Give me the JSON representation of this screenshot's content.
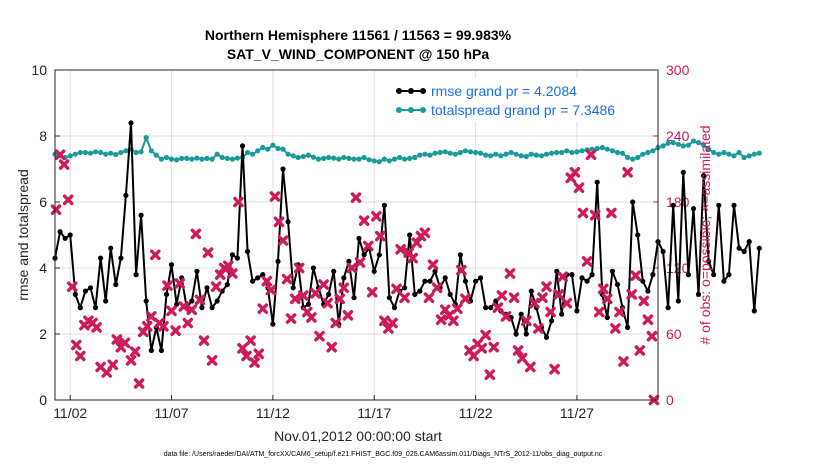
{
  "chart_data": {
    "type": "line",
    "title": "Northern Hemisphere 11561 / 11563 = 99.983%",
    "subtitle": "SAT_V_WIND_COMPONENT @ 150 hPa",
    "xlabel": "Nov.01,2012 00:00:00 start",
    "ylabel": "rmse and totalspread",
    "y2label": "# of obs: o=possible; ×=assimilated",
    "x_ticks": [
      "11/02",
      "11/07",
      "11/12",
      "11/17",
      "11/22",
      "11/27"
    ],
    "x_tick_days": [
      2,
      7,
      12,
      17,
      22,
      27
    ],
    "xlim": [
      1.25,
      31.0
    ],
    "ylim": [
      0,
      10
    ],
    "y_ticks": [
      "0",
      "2",
      "4",
      "6",
      "8",
      "10"
    ],
    "y2lim": [
      0,
      300
    ],
    "y2_ticks": [
      "0",
      "60",
      "120",
      "180",
      "240",
      "300"
    ],
    "grid": true,
    "legend_location": "top-right",
    "footer": "data file: /Users/raeder/DAI/ATM_forcXX/CAM6_setup/f.e21.FHIST_BGC.f09_025.CAM6assim.011/Diags_NTrS_2012-11/obs_diag_output.nc",
    "series": [
      {
        "name": "rmse grand pr = 4.2084",
        "color": "#000000",
        "marker": "dot",
        "axis": "left",
        "x_start": 1.25,
        "x_step": 0.25,
        "values": [
          4.3,
          5.1,
          4.9,
          5.0,
          3.2,
          2.8,
          3.3,
          3.4,
          2.8,
          4.3,
          3.0,
          4.6,
          3.5,
          4.3,
          6.2,
          8.4,
          3.8,
          5.6,
          3.0,
          1.5,
          2.2,
          1.5,
          3.2,
          4.1,
          2.9,
          3.7,
          2.8,
          3.0,
          3.9,
          2.8,
          3.4,
          2.8,
          3.0,
          3.3,
          3.5,
          4.4,
          4.3,
          7.7,
          4.5,
          3.6,
          3.7,
          3.8,
          3.4,
          2.3,
          4.2,
          7.0,
          5.4,
          3.4,
          4.1,
          2.8,
          2.9,
          4.0,
          3.4,
          2.9,
          3.2,
          3.9,
          2.3,
          3.7,
          4.2,
          3.1,
          4.9,
          4.4,
          4.6,
          3.9,
          4.4,
          5.9,
          3.1,
          2.8,
          3.3,
          3.4,
          5.0,
          3.2,
          3.3,
          3.6,
          3.6,
          3.9,
          3.4,
          3.7,
          3.2,
          2.9,
          4.4,
          3.6,
          3.0,
          3.6,
          3.7,
          2.8,
          2.8,
          3.0,
          2.7,
          2.6,
          2.5,
          2.0,
          2.6,
          2.0,
          3.3,
          2.8,
          2.2,
          1.9,
          2.4,
          3.9,
          2.6,
          3.8,
          3.8,
          2.7,
          3.7,
          3.6,
          3.8,
          6.6,
          3.2,
          2.5,
          3.9,
          3.5,
          2.8,
          2.2,
          6.0,
          5.0,
          3.6,
          3.3,
          3.8,
          4.8,
          4.5,
          2.8,
          5.9,
          3.0,
          6.9,
          3.8,
          5.8,
          3.2,
          6.8,
          4.2,
          3.8,
          5.9,
          3.6,
          3.8,
          5.9,
          4.6,
          4.5,
          4.8,
          2.7,
          4.6
        ]
      },
      {
        "name": "totalspread grand pr = 7.3486",
        "color": "#1a9b9b",
        "marker": "dot",
        "axis": "left",
        "x_start": 1.25,
        "x_step": 0.25,
        "values": [
          7.45,
          7.4,
          7.35,
          7.4,
          7.45,
          7.5,
          7.5,
          7.48,
          7.52,
          7.5,
          7.45,
          7.48,
          7.44,
          7.5,
          7.55,
          7.6,
          7.5,
          7.52,
          7.95,
          7.55,
          7.42,
          7.3,
          7.35,
          7.3,
          7.28,
          7.32,
          7.32,
          7.3,
          7.33,
          7.3,
          7.32,
          7.3,
          7.45,
          7.35,
          7.32,
          7.3,
          7.33,
          7.35,
          7.5,
          7.45,
          7.55,
          7.65,
          7.6,
          7.72,
          7.62,
          7.6,
          7.45,
          7.4,
          7.35,
          7.38,
          7.42,
          7.36,
          7.3,
          7.32,
          7.35,
          7.33,
          7.3,
          7.35,
          7.32,
          7.3,
          7.3,
          7.35,
          7.28,
          7.25,
          7.22,
          7.3,
          7.25,
          7.3,
          7.35,
          7.3,
          7.32,
          7.35,
          7.42,
          7.45,
          7.42,
          7.48,
          7.5,
          7.52,
          7.48,
          7.45,
          7.5,
          7.55,
          7.52,
          7.5,
          7.48,
          7.42,
          7.4,
          7.45,
          7.4,
          7.45,
          7.5,
          7.45,
          7.4,
          7.38,
          7.45,
          7.42,
          7.4,
          7.45,
          7.48,
          7.5,
          7.5,
          7.55,
          7.5,
          7.52,
          7.55,
          7.58,
          7.6,
          7.62,
          7.65,
          7.6,
          7.55,
          7.5,
          7.48,
          7.35,
          7.3,
          7.35,
          7.45,
          7.5,
          7.55,
          7.65,
          7.7,
          7.78,
          7.8,
          7.75,
          7.7,
          7.72,
          7.85,
          7.8,
          7.72,
          7.6,
          7.5,
          7.45,
          7.5,
          7.45,
          7.4,
          7.5,
          7.35,
          7.4,
          7.45,
          7.48
        ]
      },
      {
        "name": "obs assimilated",
        "color": "#cc1a5c",
        "marker": "x",
        "axis": "right",
        "points": [
          [
            1.3,
            173
          ],
          [
            1.5,
            223
          ],
          [
            1.7,
            214
          ],
          [
            1.9,
            182
          ],
          [
            2.1,
            103
          ],
          [
            2.3,
            50
          ],
          [
            2.5,
            40
          ],
          [
            2.7,
            68
          ],
          [
            2.9,
            72
          ],
          [
            3.1,
            70
          ],
          [
            3.3,
            66
          ],
          [
            3.5,
            30
          ],
          [
            3.8,
            25
          ],
          [
            4.1,
            32
          ],
          [
            4.3,
            55
          ],
          [
            4.5,
            48
          ],
          [
            4.7,
            52
          ],
          [
            5.0,
            36
          ],
          [
            5.2,
            44
          ],
          [
            5.4,
            15
          ],
          [
            5.6,
            62
          ],
          [
            5.8,
            67
          ],
          [
            6.0,
            76
          ],
          [
            6.2,
            132
          ],
          [
            6.4,
            70
          ],
          [
            6.6,
            67
          ],
          [
            6.8,
            104
          ],
          [
            7.0,
            81
          ],
          [
            7.2,
            63
          ],
          [
            7.4,
            106
          ],
          [
            7.6,
            85
          ],
          [
            7.8,
            70
          ],
          [
            8.0,
            82
          ],
          [
            8.2,
            151
          ],
          [
            8.4,
            91
          ],
          [
            8.6,
            54
          ],
          [
            8.8,
            134
          ],
          [
            9.0,
            36
          ],
          [
            9.2,
            103
          ],
          [
            9.4,
            114
          ],
          [
            9.6,
            120
          ],
          [
            9.8,
            122
          ],
          [
            10.0,
            115
          ],
          [
            10.3,
            180
          ],
          [
            10.5,
            47
          ],
          [
            10.7,
            40
          ],
          [
            10.9,
            54
          ],
          [
            11.1,
            34
          ],
          [
            11.3,
            42
          ],
          [
            11.5,
            83
          ],
          [
            11.7,
            108
          ],
          [
            11.9,
            100
          ],
          [
            12.1,
            185
          ],
          [
            12.3,
            162
          ],
          [
            12.5,
            145
          ],
          [
            12.7,
            110
          ],
          [
            12.9,
            74
          ],
          [
            13.1,
            92
          ],
          [
            13.3,
            120
          ],
          [
            13.5,
            95
          ],
          [
            13.7,
            80
          ],
          [
            13.9,
            75
          ],
          [
            14.1,
            97
          ],
          [
            14.3,
            58
          ],
          [
            14.5,
            105
          ],
          [
            14.7,
            88
          ],
          [
            14.9,
            48
          ],
          [
            15.1,
            70
          ],
          [
            15.3,
            92
          ],
          [
            15.5,
            102
          ],
          [
            15.7,
            77
          ],
          [
            15.9,
            120
          ],
          [
            16.1,
            184
          ],
          [
            16.3,
            125
          ],
          [
            16.5,
            163
          ],
          [
            16.7,
            140
          ],
          [
            16.9,
            98
          ],
          [
            17.1,
            167
          ],
          [
            17.3,
            149
          ],
          [
            17.5,
            72
          ],
          [
            17.7,
            65
          ],
          [
            17.9,
            70
          ],
          [
            18.1,
            101
          ],
          [
            18.3,
            137
          ],
          [
            18.5,
            93
          ],
          [
            18.7,
            134
          ],
          [
            18.9,
            129
          ],
          [
            19.1,
            143
          ],
          [
            19.3,
            149
          ],
          [
            19.5,
            152
          ],
          [
            19.7,
            93
          ],
          [
            19.9,
            123
          ],
          [
            20.1,
            102
          ],
          [
            20.3,
            73
          ],
          [
            20.5,
            82
          ],
          [
            20.7,
            77
          ],
          [
            20.9,
            72
          ],
          [
            21.1,
            83
          ],
          [
            21.3,
            118
          ],
          [
            21.5,
            92
          ],
          [
            21.7,
            45
          ],
          [
            21.9,
            40
          ],
          [
            22.1,
            51
          ],
          [
            22.3,
            47
          ],
          [
            22.5,
            59
          ],
          [
            22.7,
            23
          ],
          [
            22.9,
            48
          ],
          [
            23.1,
            84
          ],
          [
            23.3,
            95
          ],
          [
            23.5,
            76
          ],
          [
            23.7,
            115
          ],
          [
            23.9,
            93
          ],
          [
            24.1,
            45
          ],
          [
            24.3,
            38
          ],
          [
            24.5,
            72
          ],
          [
            24.7,
            30
          ],
          [
            24.9,
            88
          ],
          [
            25.1,
            65
          ],
          [
            25.3,
            93
          ],
          [
            25.5,
            103
          ],
          [
            25.7,
            80
          ],
          [
            25.9,
            28
          ],
          [
            26.1,
            96
          ],
          [
            26.3,
            112
          ],
          [
            26.5,
            88
          ],
          [
            26.7,
            202
          ],
          [
            26.9,
            207
          ],
          [
            27.1,
            193
          ],
          [
            27.3,
            170
          ],
          [
            27.5,
            126
          ],
          [
            27.7,
            223
          ],
          [
            27.9,
            168
          ],
          [
            28.1,
            80
          ],
          [
            28.3,
            101
          ],
          [
            28.5,
            92
          ],
          [
            28.7,
            170
          ],
          [
            28.9,
            65
          ],
          [
            29.1,
            80
          ],
          [
            29.3,
            35
          ],
          [
            29.5,
            207
          ],
          [
            29.7,
            96
          ],
          [
            29.9,
            113
          ],
          [
            30.1,
            45
          ],
          [
            30.3,
            90
          ],
          [
            30.5,
            73
          ],
          [
            30.7,
            58
          ],
          [
            30.8,
            0
          ]
        ]
      }
    ]
  }
}
